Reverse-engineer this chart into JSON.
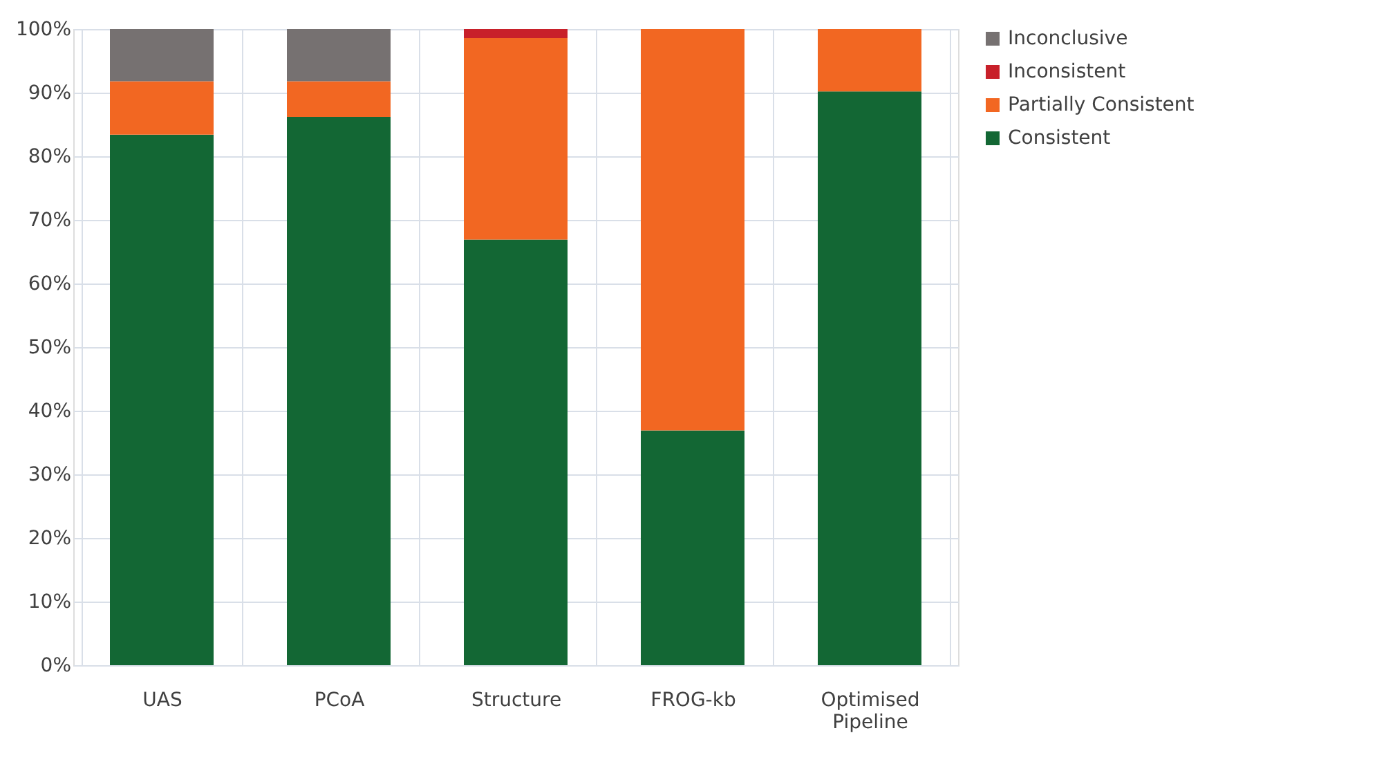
{
  "chart_data": {
    "type": "bar",
    "stacked": true,
    "categories": [
      "UAS",
      "PCoA",
      "Structure",
      "FROG-kb",
      "Optimised Pipeline"
    ],
    "series": [
      {
        "name": "Consistent",
        "color": "#136734",
        "values": [
          83.4,
          86.2,
          66.9,
          36.9,
          90.2
        ]
      },
      {
        "name": "Partially Consistent",
        "color": "#f26722",
        "values": [
          8.4,
          5.6,
          31.7,
          63.1,
          9.8
        ]
      },
      {
        "name": "Inconsistent",
        "color": "#c8202a",
        "values": [
          0,
          0,
          1.4,
          0,
          0
        ]
      },
      {
        "name": "Inconclusive",
        "color": "#767171",
        "values": [
          8.2,
          8.2,
          0,
          0,
          0
        ]
      }
    ],
    "ylim": [
      0,
      100
    ],
    "yticks": [
      {
        "value": 0,
        "label": "0%"
      },
      {
        "value": 10,
        "label": "10%"
      },
      {
        "value": 20,
        "label": "20%"
      },
      {
        "value": 30,
        "label": "30%"
      },
      {
        "value": 40,
        "label": "40%"
      },
      {
        "value": 50,
        "label": "50%"
      },
      {
        "value": 60,
        "label": "60%"
      },
      {
        "value": 70,
        "label": "70%"
      },
      {
        "value": 80,
        "label": "80%"
      },
      {
        "value": 90,
        "label": "90%"
      },
      {
        "value": 100,
        "label": "100%"
      }
    ],
    "grid": true,
    "legend": "right"
  }
}
